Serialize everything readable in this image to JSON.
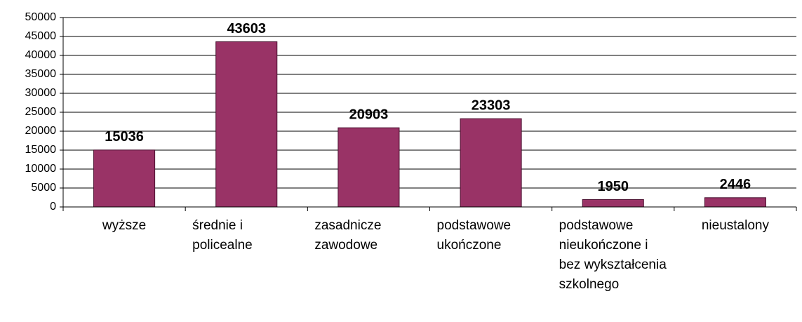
{
  "chart_data": {
    "type": "bar",
    "categories": [
      "wyższe",
      "średnie i policealne",
      "zasadnicze zawodowe",
      "podstawowe ukończone",
      "podstawowe nieukończone i bez wykształcenia szkolnego",
      "nieustalony"
    ],
    "values": [
      15036,
      43603,
      20903,
      23303,
      1950,
      2446
    ],
    "color": "#993366",
    "ylim": [
      0,
      50000
    ],
    "yticks": [
      0,
      5000,
      10000,
      15000,
      20000,
      25000,
      30000,
      35000,
      40000,
      45000,
      50000
    ],
    "grid": true
  }
}
